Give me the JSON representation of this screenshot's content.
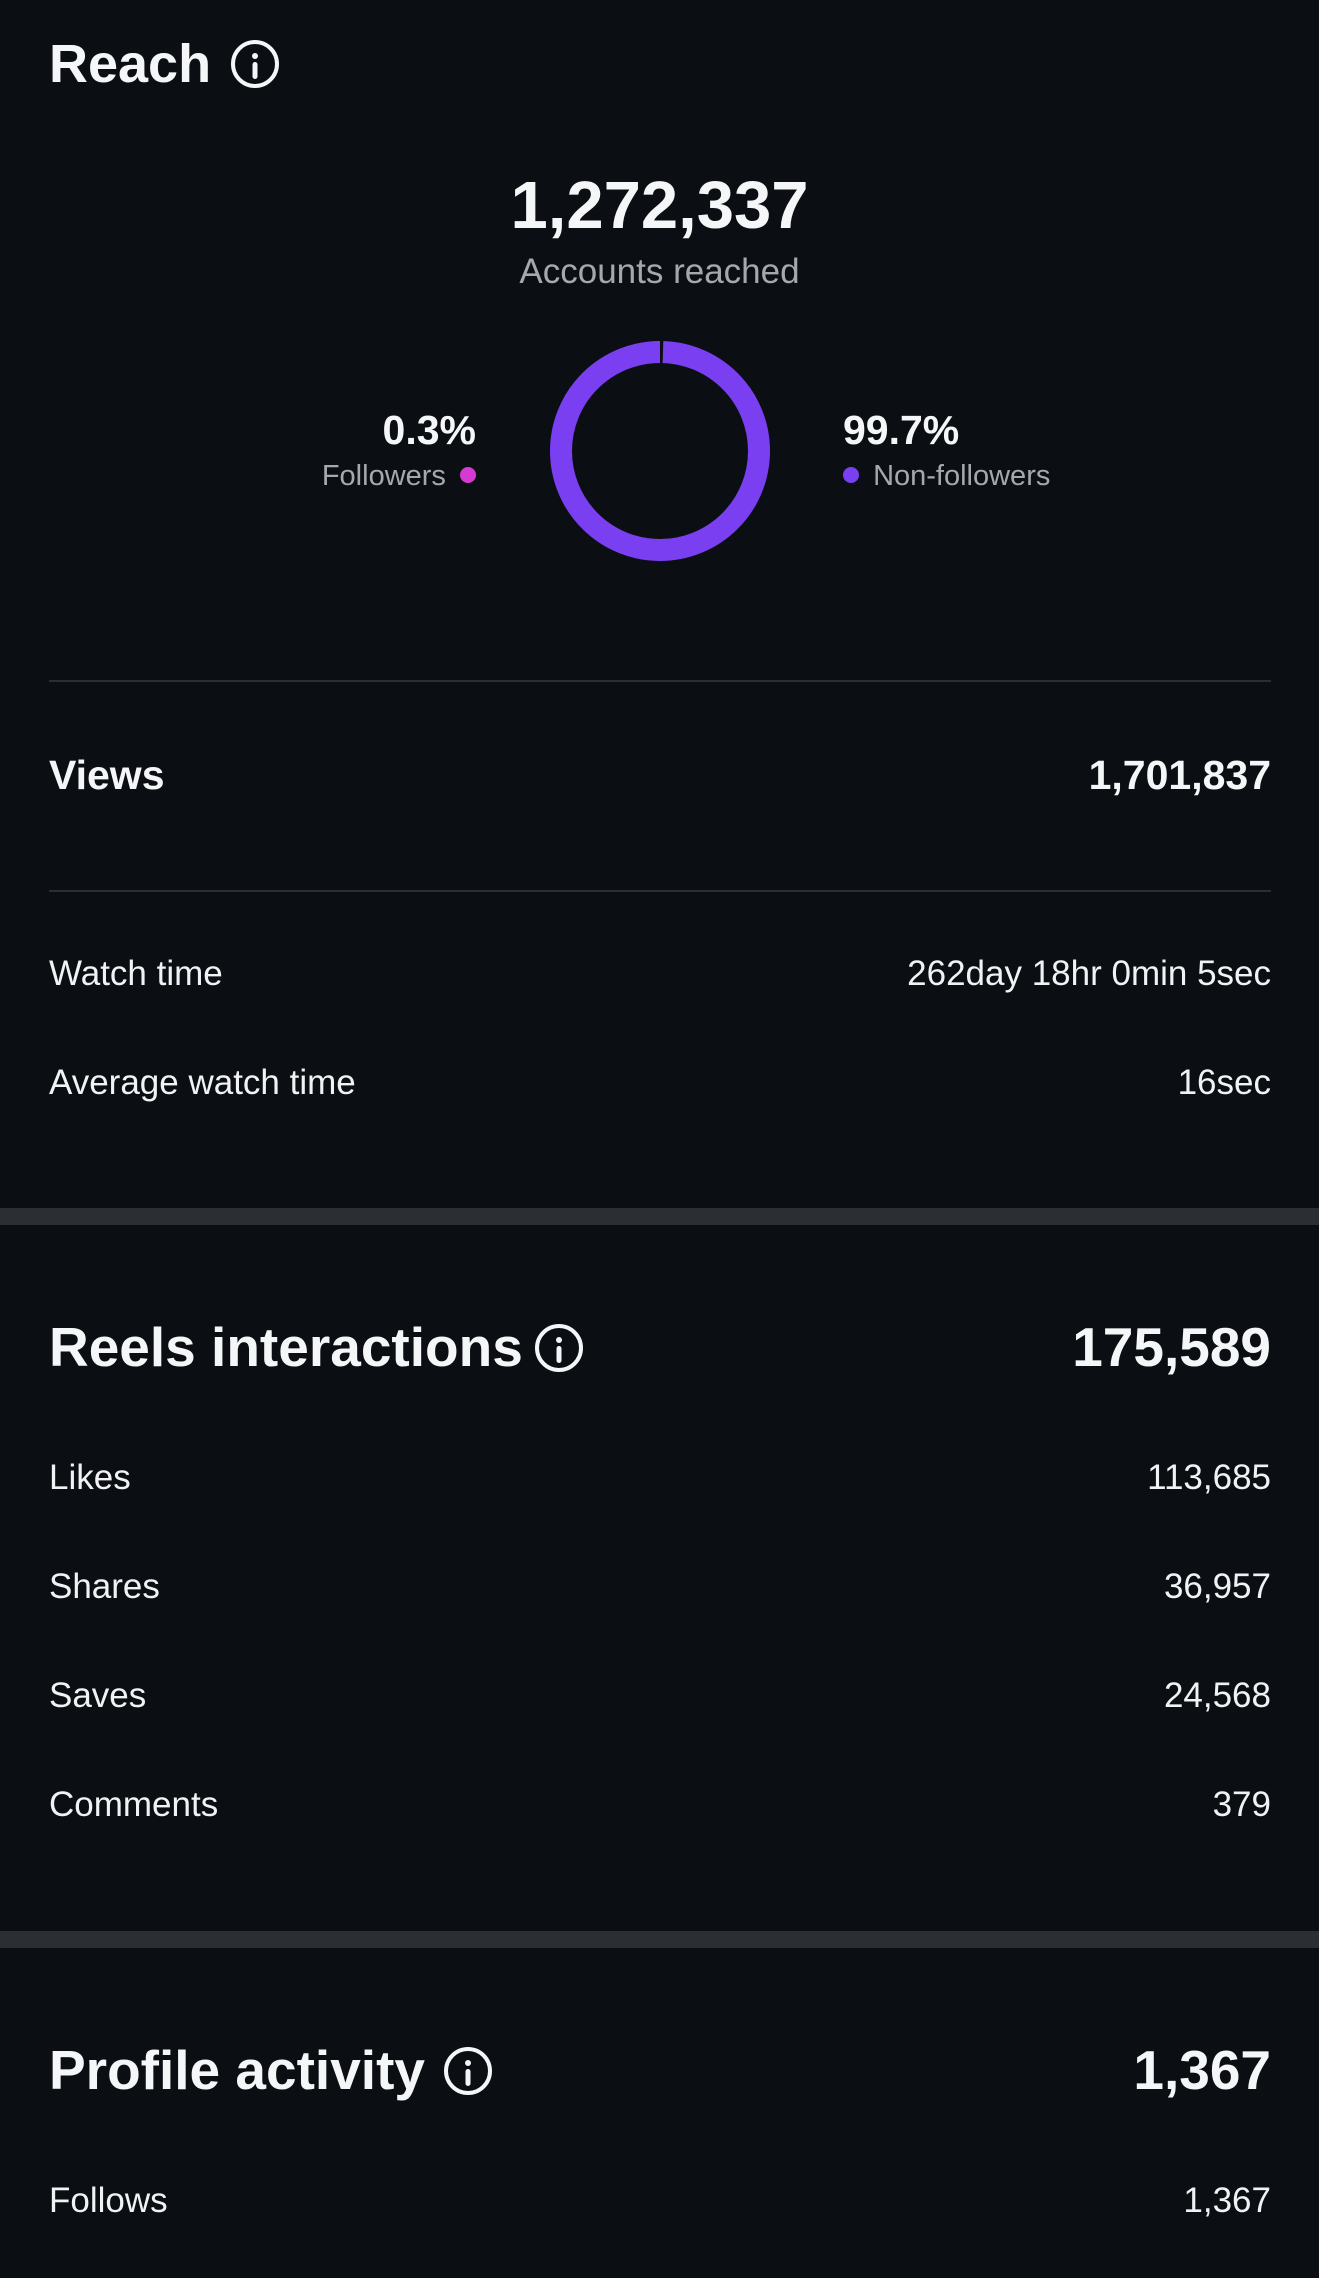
{
  "reach": {
    "title": "Reach",
    "accounts_reached": "1,272,337",
    "accounts_reached_label": "Accounts reached",
    "followers_pct": "0.3%",
    "followers_label": "Followers",
    "followers_fraction": 0.003,
    "non_followers_pct": "99.7%",
    "non_followers_label": "Non-followers",
    "non_followers_fraction": 0.997
  },
  "views": {
    "label": "Views",
    "value": "1,701,837"
  },
  "watch": {
    "watch_time_label": "Watch time",
    "watch_time_value": "262day 18hr 0min 5sec",
    "avg_watch_time_label": "Average watch time",
    "avg_watch_time_value": "16sec"
  },
  "reels_interactions": {
    "title": "Reels interactions",
    "total": "175,589",
    "rows": [
      {
        "label": "Likes",
        "value": "113,685"
      },
      {
        "label": "Shares",
        "value": "36,957"
      },
      {
        "label": "Saves",
        "value": "24,568"
      },
      {
        "label": "Comments",
        "value": "379"
      }
    ]
  },
  "profile_activity": {
    "title": "Profile activity",
    "total": "1,367",
    "rows": [
      {
        "label": "Follows",
        "value": "1,367"
      }
    ]
  },
  "colors": {
    "background": "#0b0f14",
    "followers": "#d63bd1",
    "non_followers": "#7b3ff2",
    "text": "#f5f6f7",
    "muted": "#a5a9ae"
  },
  "icons": {
    "info": "info-circle-icon"
  }
}
